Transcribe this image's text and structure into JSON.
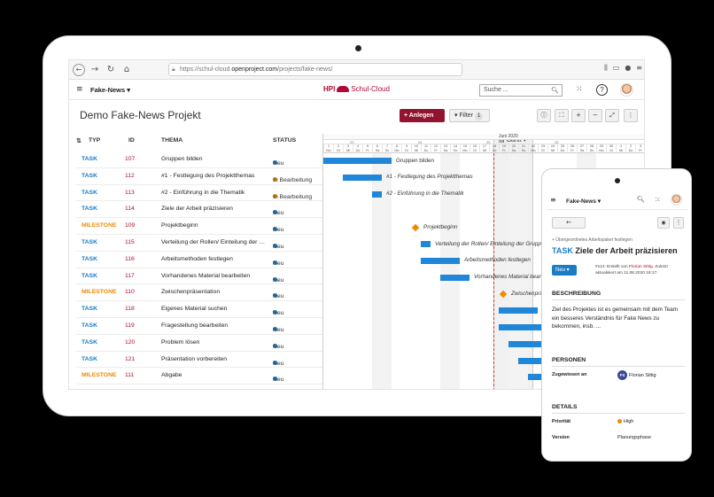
{
  "browser": {
    "url_prefix": "https://schul-cloud.",
    "url_host": "openproject.com",
    "url_path": "/projects/fake-news/"
  },
  "header": {
    "project": "Fake-News",
    "logo_hpi": "HPI",
    "logo_name": "Schul-Cloud",
    "search_placeholder": "Suche ..."
  },
  "toolbar": {
    "title": "Demo Fake-News Projekt",
    "add_label": "+ Anlegen",
    "filter_label": "Filter",
    "filter_count": "1",
    "gantt_label": "Gantt"
  },
  "table": {
    "headers": {
      "type": "TYP",
      "id": "ID",
      "subject": "THEMA",
      "status": "STATUS"
    },
    "rows": [
      {
        "type": "TASK",
        "id": "107",
        "subject": "Gruppen bilden",
        "status": "Neu"
      },
      {
        "type": "TASK",
        "id": "112",
        "subject": "#1 - Festlegung des Projektthemas",
        "status": "In Bearbeitung"
      },
      {
        "type": "TASK",
        "id": "113",
        "subject": "#2 - Einführung in die Thematik",
        "status": "In Bearbeitung"
      },
      {
        "type": "TASK",
        "id": "114",
        "subject": "Ziele der Arbeit präzisieren",
        "status": "Neu"
      },
      {
        "type": "MILESTONE",
        "id": "109",
        "subject": "Projektbeginn",
        "status": "Neu"
      },
      {
        "type": "TASK",
        "id": "115",
        "subject": "Verteilung der Rollen/ Einteilung der Gr...",
        "status": "Neu"
      },
      {
        "type": "TASK",
        "id": "116",
        "subject": "Arbeitsmethoden festlegen",
        "status": "Neu"
      },
      {
        "type": "TASK",
        "id": "117",
        "subject": "Vorhandenes Material bearbeiten",
        "status": "Neu"
      },
      {
        "type": "MILESTONE",
        "id": "110",
        "subject": "Zwischenpräsentation",
        "status": "Neu"
      },
      {
        "type": "TASK",
        "id": "118",
        "subject": "Eigenes Material suchen",
        "status": "Neu"
      },
      {
        "type": "TASK",
        "id": "119",
        "subject": "Fragestellung bearbeiten",
        "status": "Neu"
      },
      {
        "type": "TASK",
        "id": "120",
        "subject": "Problem lösen",
        "status": "Neu"
      },
      {
        "type": "TASK",
        "id": "121",
        "subject": "Präsentation vorbereiten",
        "status": "Neu"
      },
      {
        "type": "MILESTONE",
        "id": "111",
        "subject": "Abgabe",
        "status": "Neu"
      }
    ]
  },
  "gantt": {
    "month": "Juni 2020",
    "weeks": [
      "23",
      "24",
      "25",
      "26"
    ],
    "days": [
      {
        "n": "1",
        "d": "Mo"
      },
      {
        "n": "2",
        "d": "Di"
      },
      {
        "n": "3",
        "d": "Mi"
      },
      {
        "n": "4",
        "d": "Do"
      },
      {
        "n": "5",
        "d": "Fr"
      },
      {
        "n": "6",
        "d": "Sa"
      },
      {
        "n": "7",
        "d": "So"
      },
      {
        "n": "8",
        "d": "Mo"
      },
      {
        "n": "9",
        "d": "Di"
      },
      {
        "n": "10",
        "d": "Mi"
      },
      {
        "n": "11",
        "d": "Do"
      },
      {
        "n": "12",
        "d": "Fr"
      },
      {
        "n": "13",
        "d": "Sa"
      },
      {
        "n": "14",
        "d": "So"
      },
      {
        "n": "15",
        "d": "Mo"
      },
      {
        "n": "16",
        "d": "Di"
      },
      {
        "n": "17",
        "d": "Mi"
      },
      {
        "n": "18",
        "d": "Do"
      },
      {
        "n": "19",
        "d": "Fr"
      },
      {
        "n": "20",
        "d": "Sa"
      },
      {
        "n": "21",
        "d": "So"
      },
      {
        "n": "22",
        "d": "Mo"
      },
      {
        "n": "23",
        "d": "Di"
      },
      {
        "n": "24",
        "d": "Mi"
      },
      {
        "n": "25",
        "d": "Do"
      },
      {
        "n": "26",
        "d": "Fr"
      },
      {
        "n": "27",
        "d": "Sa"
      },
      {
        "n": "28",
        "d": "So"
      },
      {
        "n": "29",
        "d": "Mo"
      },
      {
        "n": "30",
        "d": "Di"
      },
      {
        "n": "1",
        "d": "Mi"
      },
      {
        "n": "2",
        "d": "Do"
      },
      {
        "n": "3",
        "d": "Fr"
      }
    ],
    "today_day": 18,
    "items": [
      {
        "kind": "bar",
        "start": 1,
        "end": 7,
        "label": "Gruppen bilden",
        "italic": false
      },
      {
        "kind": "bar",
        "start": 3,
        "end": 6,
        "label": "#1 - Festlegung des Projektthemas",
        "italic": true
      },
      {
        "kind": "bar",
        "start": 6,
        "end": 6,
        "label": "#2 - Einführung in die Thematik",
        "italic": true
      },
      {
        "kind": "none"
      },
      {
        "kind": "milestone",
        "start": 10,
        "label": "Projektbeginn",
        "italic": true
      },
      {
        "kind": "bar",
        "start": 11,
        "end": 11,
        "label": "Verteilung der Rollen/ Einteilung der Gruppen",
        "italic": true
      },
      {
        "kind": "bar",
        "start": 11,
        "end": 14,
        "label": "Arbeitsmethoden festlegen",
        "italic": true
      },
      {
        "kind": "bar",
        "start": 13,
        "end": 15,
        "label": "Vorhandenes Material bearbeiten",
        "italic": true
      },
      {
        "kind": "milestone",
        "start": 19,
        "label": "Zwischenpräsentation",
        "italic": true
      },
      {
        "kind": "bar",
        "start": 19,
        "end": 22,
        "label": "",
        "italic": false
      },
      {
        "kind": "bar",
        "start": 19,
        "end": 30,
        "label": "",
        "italic": false
      },
      {
        "kind": "bar",
        "start": 20,
        "end": 30,
        "label": "",
        "italic": false
      },
      {
        "kind": "bar",
        "start": 21,
        "end": 30,
        "label": "",
        "italic": false
      },
      {
        "kind": "bar",
        "start": 22,
        "end": 30,
        "label": "",
        "italic": false
      }
    ]
  },
  "phone": {
    "project": "Fake-News",
    "parent_link": "+ Übergeordnetes Arbeitspaket festlegen",
    "type": "TASK",
    "title": "Ziele der Arbeit präzisieren",
    "status": "Neu",
    "meta_prefix": "#114: Erstellt von ",
    "meta_author": "Florian Sittig",
    "meta_suffix": ". Zuletzt aktualisiert am 11.06.2020 19:17.",
    "section_description": "BESCHREIBUNG",
    "description": "Ziel des Projektes ist es gemeinsam mit dem Team ein besseres Verständnis für Fake News zu bekommen, insb. ...",
    "section_people": "PERSONEN",
    "assignee_label": "Zugewiesen an",
    "assignee_initials": "FS",
    "assignee_name": "Florian Sittig",
    "section_details": "DETAILS",
    "priority_label": "Priorität",
    "priority_value": "High",
    "version_label": "Version",
    "version_value": "Planungsphase"
  },
  "colors": {
    "accent": "#93132f",
    "task": "#1a7cc5",
    "milestone": "#f08a00",
    "bar": "#1f86d8"
  }
}
